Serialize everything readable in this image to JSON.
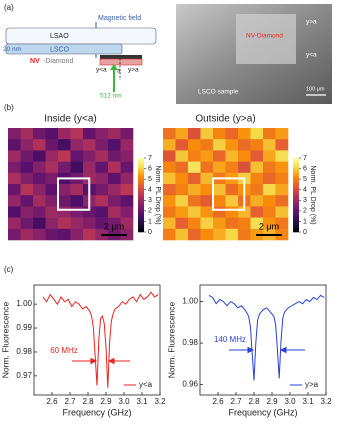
{
  "diagram": {
    "label": "(a)",
    "layers": [
      "LSAO",
      "LSCO"
    ],
    "magnetic_field": "Magnetic field",
    "thickness": "20 nm",
    "nv": "NV",
    "diamond": "-Diamond",
    "positions": [
      "y<a",
      "a",
      "y>a"
    ],
    "laser": "512 nm",
    "photo": {
      "nv": "NV-Diamond",
      "upper": "y>a",
      "lower": "y<a",
      "sample": "LSCO sample",
      "scale": "100 μm"
    }
  },
  "labels": [
    "(b)",
    "(c)"
  ],
  "chart_data": [
    {
      "type": "heatmap",
      "title": "Inside (y<a)",
      "colorbar_label": "Norm. PL Drop (%)",
      "scale_bar": "2 μm",
      "clim": [
        0,
        7
      ],
      "cticks": [
        0,
        1,
        2,
        3,
        4,
        5,
        6,
        7
      ],
      "values": [
        [
          2.5,
          3.1,
          2.2,
          1.8,
          2.9,
          3.4,
          2.0,
          2.6,
          3.0,
          2.3
        ],
        [
          1.9,
          2.7,
          3.3,
          2.1,
          1.5,
          2.8,
          3.2,
          2.4,
          1.7,
          2.9
        ],
        [
          3.0,
          2.2,
          1.6,
          2.9,
          3.5,
          2.0,
          2.5,
          3.1,
          2.2,
          2.6
        ],
        [
          2.4,
          1.8,
          2.6,
          3.2,
          2.3,
          1.4,
          2.9,
          2.0,
          3.3,
          2.1
        ],
        [
          3.2,
          2.5,
          2.0,
          2.4,
          1.7,
          2.2,
          3.0,
          2.7,
          1.9,
          2.8
        ],
        [
          2.1,
          3.4,
          2.7,
          1.9,
          2.6,
          3.1,
          1.8,
          2.3,
          2.9,
          3.5
        ],
        [
          2.8,
          2.0,
          3.1,
          2.5,
          2.2,
          1.6,
          2.7,
          3.3,
          2.4,
          1.9
        ],
        [
          1.7,
          2.6,
          2.3,
          3.0,
          2.8,
          2.4,
          2.1,
          1.8,
          3.1,
          2.5
        ],
        [
          2.9,
          2.2,
          1.5,
          2.7,
          3.3,
          2.9,
          2.5,
          2.0,
          2.3,
          3.0
        ],
        [
          2.3,
          3.0,
          2.6,
          2.1,
          1.9,
          2.6,
          3.4,
          2.8,
          2.2,
          2.7
        ]
      ]
    },
    {
      "type": "heatmap",
      "title": "Outside (y>a)",
      "colorbar_label": "Norm. PL Drop (%)",
      "scale_bar": "2 μm",
      "clim": [
        0,
        7
      ],
      "cticks": [
        0,
        1,
        2,
        3,
        4,
        5,
        6,
        7
      ],
      "values": [
        [
          4.8,
          5.5,
          4.2,
          5.9,
          5.1,
          4.6,
          5.3,
          6.1,
          4.9,
          5.4
        ],
        [
          5.6,
          4.4,
          5.2,
          4.9,
          6.0,
          5.3,
          4.7,
          5.0,
          5.8,
          4.5
        ],
        [
          4.3,
          5.9,
          5.0,
          5.4,
          4.6,
          5.7,
          5.2,
          4.4,
          5.5,
          6.2
        ],
        [
          5.1,
          4.7,
          6.3,
          4.8,
          5.5,
          5.0,
          4.2,
          5.8,
          4.9,
          5.3
        ],
        [
          5.8,
          5.2,
          4.5,
          5.7,
          4.9,
          5.4,
          6.0,
          5.1,
          4.6,
          5.0
        ],
        [
          4.6,
          5.0,
          5.6,
          5.2,
          5.8,
          4.7,
          5.3,
          4.9,
          6.1,
          5.5
        ],
        [
          5.3,
          6.0,
          4.8,
          4.4,
          5.1,
          5.9,
          4.8,
          5.6,
          5.2,
          4.7
        ],
        [
          4.9,
          5.4,
          5.9,
          5.3,
          4.7,
          5.2,
          5.7,
          4.5,
          5.0,
          5.8
        ],
        [
          5.7,
          4.5,
          5.1,
          6.0,
          5.4,
          4.8,
          5.0,
          6.2,
          5.3,
          4.9
        ],
        [
          5.0,
          5.8,
          4.6,
          5.2,
          5.6,
          6.1,
          4.9,
          5.4,
          5.7,
          5.1
        ]
      ]
    },
    {
      "type": "line",
      "xlabel": "Frequency (GHz)",
      "ylabel": "Norm. Fluorescence",
      "annotation": "60 MHz",
      "x": [
        2.55,
        2.57,
        2.59,
        2.61,
        2.63,
        2.65,
        2.67,
        2.69,
        2.71,
        2.73,
        2.75,
        2.77,
        2.79,
        2.81,
        2.82,
        2.83,
        2.84,
        2.85,
        2.86,
        2.87,
        2.88,
        2.89,
        2.9,
        2.91,
        2.92,
        2.93,
        2.94,
        2.95,
        2.97,
        2.99,
        3.01,
        3.03,
        3.05,
        3.07,
        3.09,
        3.11,
        3.13,
        3.15,
        3.17,
        3.19
      ],
      "series": [
        {
          "name": "y<a",
          "color": "#e8231d",
          "values": [
            1.003,
            1.001,
            1.004,
            1.002,
            1.0,
            1.003,
            1.001,
            1.002,
            0.999,
            1.001,
            1.0,
            0.998,
            0.999,
            0.997,
            0.995,
            0.99,
            0.978,
            0.966,
            0.985,
            0.994,
            0.995,
            0.992,
            0.982,
            0.965,
            0.984,
            0.993,
            0.996,
            0.998,
            0.999,
            1.001,
            1.0,
            1.002,
            1.003,
            1.001,
            1.004,
            1.002,
            1.003,
            1.005,
            1.003,
            1.004
          ]
        }
      ],
      "xlim": [
        2.5,
        3.2
      ],
      "xticks": [
        2.6,
        2.7,
        2.8,
        2.9,
        {
          "value": 3,
          "label": "3.0"
        },
        3.1,
        3.2
      ],
      "ylim": [
        0.962,
        1.008
      ],
      "yticks": [
        0.97,
        0.98,
        0.99,
        {
          "value": 1,
          "label": "1.00"
        }
      ]
    },
    {
      "type": "line",
      "xlabel": "Frequency (GHz)",
      "ylabel": "Norm. Fluorescence",
      "annotation": "140 MHz",
      "x": [
        2.55,
        2.57,
        2.59,
        2.61,
        2.63,
        2.65,
        2.67,
        2.69,
        2.71,
        2.73,
        2.75,
        2.77,
        2.78,
        2.79,
        2.8,
        2.81,
        2.82,
        2.83,
        2.85,
        2.87,
        2.89,
        2.91,
        2.92,
        2.93,
        2.94,
        2.95,
        2.96,
        2.97,
        2.99,
        3.01,
        3.03,
        3.05,
        3.07,
        3.09,
        3.11,
        3.13,
        3.15,
        3.17,
        3.19
      ],
      "series": [
        {
          "name": "y>a",
          "color": "#2a3fd6",
          "values": [
            1.003,
            1.002,
            0.999,
            1.001,
            1.0,
            0.998,
            1.0,
            0.999,
            0.997,
            0.998,
            0.996,
            0.993,
            0.988,
            0.975,
            0.962,
            0.98,
            0.991,
            0.994,
            0.996,
            0.997,
            0.995,
            0.993,
            0.989,
            0.977,
            0.963,
            0.981,
            0.992,
            0.995,
            0.997,
            0.998,
            0.999,
            1.0,
            0.999,
            1.001,
            1.0,
            1.002,
            1.001,
            1.003,
            1.002
          ]
        }
      ],
      "xlim": [
        2.5,
        3.2
      ],
      "xticks": [
        2.6,
        2.7,
        2.8,
        2.9,
        {
          "value": 3,
          "label": "3.0"
        },
        3.1,
        3.2
      ],
      "ylim": [
        0.955,
        1.008
      ],
      "yticks": [
        0.96,
        0.98,
        {
          "value": 1,
          "label": "1.00"
        }
      ]
    }
  ]
}
